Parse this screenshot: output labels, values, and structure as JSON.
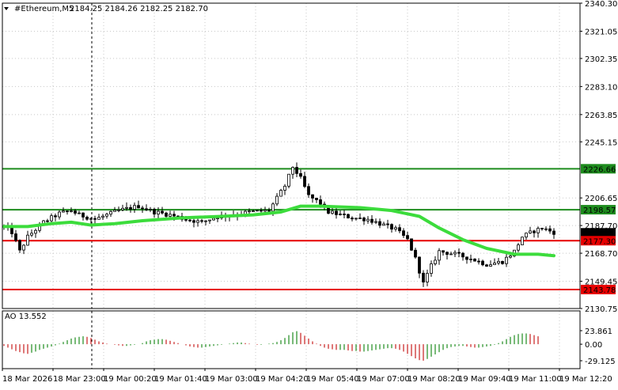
{
  "header": {
    "symbol": "#Ethereum,M5",
    "ohlc": "2184.25 2184.26 2182.25 2182.70"
  },
  "indicator": {
    "title": "AO 13.552",
    "ticks": [
      "23.861",
      "0.00",
      "-29.125"
    ]
  },
  "colors": {
    "background": "#ffffff",
    "grid": "#c8c8c8",
    "candle": "#000000",
    "ma_line": "#3cdc3c",
    "resistance_line": "#1e8c1e",
    "support_line": "#e60000",
    "ao_up": "#1e8c1e",
    "ao_down": "#c81e1e"
  },
  "chart_data": [
    {
      "type": "candlestick",
      "y_axis": {
        "range": [
          2130.75,
          2340.3
        ],
        "ticks": [
          "2340.30",
          "2321.05",
          "2302.35",
          "2283.10",
          "2263.85",
          "2245.15",
          "2226.66",
          "2206.65",
          "2198.57",
          "2187.70",
          "2182.70",
          "2177.30",
          "2168.70",
          "2149.45",
          "2143.78",
          "2130.75"
        ]
      },
      "x_axis": {
        "ticks": [
          "18 Mar 2026",
          "18 Mar 23:00",
          "19 Mar 00:20",
          "19 Mar 01:40",
          "19 Mar 03:00",
          "19 Mar 04:20",
          "19 Mar 05:40",
          "19 Mar 07:00",
          "19 Mar 08:20",
          "19 Mar 09:40",
          "19 Mar 11:00",
          "19 Mar 12:20"
        ]
      },
      "current_price": {
        "label": "2182.70",
        "value": 2182.7
      },
      "levels": [
        {
          "label": "2226.66",
          "value": 2226.66,
          "kind": "resistance"
        },
        {
          "label": "2198.57",
          "value": 2198.57,
          "kind": "resistance"
        },
        {
          "label": "2177.30",
          "value": 2177.3,
          "kind": "support"
        },
        {
          "label": "2143.78",
          "value": 2143.78,
          "kind": "support"
        }
      ],
      "crosshair_time": "18 Mar 23:00",
      "close_path": [
        [
          0,
          2187
        ],
        [
          2,
          2183
        ],
        [
          4,
          2170
        ],
        [
          6,
          2180
        ],
        [
          10,
          2190
        ],
        [
          14,
          2196
        ],
        [
          17,
          2198
        ],
        [
          19,
          2195
        ],
        [
          23,
          2192
        ],
        [
          29,
          2198
        ],
        [
          34,
          2201
        ],
        [
          38,
          2197
        ],
        [
          42,
          2195
        ],
        [
          46,
          2192
        ],
        [
          50,
          2190
        ],
        [
          54,
          2194
        ],
        [
          58,
          2195
        ],
        [
          62,
          2197
        ],
        [
          67,
          2198
        ],
        [
          71,
          2215
        ],
        [
          73,
          2228
        ],
        [
          75,
          2220
        ],
        [
          77,
          2208
        ],
        [
          80,
          2203
        ],
        [
          82,
          2197
        ],
        [
          85,
          2195
        ],
        [
          88,
          2193
        ],
        [
          92,
          2192
        ],
        [
          96,
          2188
        ],
        [
          99,
          2185
        ],
        [
          102,
          2178
        ],
        [
          104,
          2165
        ],
        [
          106,
          2148
        ],
        [
          108,
          2160
        ],
        [
          110,
          2170
        ],
        [
          114,
          2168
        ],
        [
          118,
          2165
        ],
        [
          122,
          2161
        ],
        [
          126,
          2163
        ],
        [
          129,
          2170
        ],
        [
          131,
          2180
        ],
        [
          134,
          2184
        ],
        [
          136,
          2186
        ],
        [
          139,
          2183
        ]
      ],
      "ma_path": [
        [
          0,
          2187
        ],
        [
          6,
          2187
        ],
        [
          12,
          2189
        ],
        [
          17,
          2190
        ],
        [
          22,
          2188
        ],
        [
          28,
          2189
        ],
        [
          35,
          2191
        ],
        [
          45,
          2193
        ],
        [
          55,
          2194
        ],
        [
          63,
          2195
        ],
        [
          70,
          2197
        ],
        [
          75,
          2201
        ],
        [
          80,
          2201
        ],
        [
          90,
          2200
        ],
        [
          98,
          2198
        ],
        [
          105,
          2194
        ],
        [
          110,
          2186
        ],
        [
          116,
          2178
        ],
        [
          122,
          2172
        ],
        [
          129,
          2168
        ],
        [
          135,
          2168
        ],
        [
          139,
          2167
        ]
      ]
    },
    {
      "type": "bar",
      "name": "AO",
      "y_axis": {
        "range": [
          -29.125,
          23.861
        ]
      },
      "values": [
        -3,
        -6,
        -9,
        -12,
        -14,
        -16,
        -17,
        -15,
        -13,
        -10,
        -8,
        -6,
        -4,
        -2,
        1,
        4,
        7,
        10,
        12,
        13,
        14,
        13,
        11,
        8,
        5,
        3,
        1,
        0,
        -1,
        -2,
        -3,
        -3,
        -2,
        -1,
        0,
        2,
        5,
        7,
        8,
        9,
        9,
        8,
        6,
        4,
        2,
        0,
        -2,
        -4,
        -5,
        -6,
        -6,
        -5,
        -4,
        -3,
        -2,
        -1,
        0,
        1,
        2,
        3,
        3,
        2,
        1,
        0,
        -1,
        -1,
        0,
        1,
        2,
        4,
        7,
        11,
        16,
        21,
        23,
        20,
        15,
        10,
        5,
        1,
        -3,
        -6,
        -8,
        -9,
        -10,
        -10,
        -10,
        -11,
        -12,
        -12,
        -13,
        -13,
        -12,
        -11,
        -10,
        -9,
        -8,
        -7,
        -7,
        -8,
        -10,
        -13,
        -17,
        -21,
        -25,
        -28,
        -29,
        -26,
        -22,
        -18,
        -14,
        -10,
        -7,
        -5,
        -4,
        -3,
        -3,
        -4,
        -5,
        -6,
        -6,
        -5,
        -4,
        -3,
        -1,
        2,
        5,
        9,
        13,
        16,
        18,
        19,
        19,
        18,
        16,
        14
      ]
    }
  ]
}
